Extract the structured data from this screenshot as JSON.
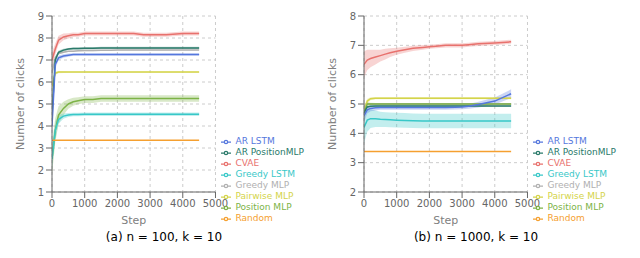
{
  "chart_data": [
    {
      "type": "line",
      "title": "(a) n = 100, k = 10",
      "x_label": "Step",
      "y_label": "Number of clicks",
      "x": [
        0,
        100,
        200,
        350,
        500,
        650,
        800,
        1000,
        1250,
        1500,
        1800,
        2000,
        2200,
        2500,
        2800,
        3000,
        3200,
        3500,
        4000,
        4500
      ],
      "xlim": [
        0,
        5000
      ],
      "ylim": [
        1,
        9
      ],
      "xticks": [
        0,
        1000,
        2000,
        3000,
        4000,
        5000
      ],
      "yticks": [
        1,
        2,
        3,
        4,
        5,
        6,
        7,
        8,
        9
      ],
      "grid": true,
      "legend": "lower right",
      "series": [
        {
          "name": "CVAE",
          "color": "#e8716d",
          "values": [
            7.0,
            7.5,
            7.9,
            8.05,
            8.1,
            8.15,
            8.15,
            8.2,
            8.2,
            8.2,
            8.2,
            8.2,
            8.2,
            8.2,
            8.15,
            8.15,
            8.15,
            8.15,
            8.2,
            8.2
          ],
          "std": [
            0.35,
            0.25,
            0.2,
            0.15,
            0.12,
            0.1,
            0.09,
            0.09,
            0.09,
            0.09,
            0.09,
            0.09,
            0.09,
            0.09,
            0.09,
            0.09,
            0.09,
            0.09,
            0.09,
            0.09
          ]
        },
        {
          "name": "Greedy MLP",
          "color": "#b0b0b0",
          "values": [
            6.4,
            7.1,
            7.3,
            7.35,
            7.4,
            7.4,
            7.42,
            7.43,
            7.43,
            7.44,
            7.44,
            7.45,
            7.45,
            7.45,
            7.45,
            7.45,
            7.45,
            7.45,
            7.45,
            7.45
          ],
          "std": [
            0.2,
            0.08,
            0.05,
            0.04,
            0.03,
            0.03,
            0.03,
            0.03,
            0.03,
            0.03,
            0.03,
            0.03,
            0.03,
            0.03,
            0.03,
            0.03,
            0.03,
            0.03,
            0.03,
            0.03
          ]
        },
        {
          "name": "Pairwise MLP",
          "color": "#d4d44a",
          "values": [
            5.8,
            6.4,
            6.45,
            6.45,
            6.45,
            6.45,
            6.45,
            6.45,
            6.45,
            6.45,
            6.45,
            6.45,
            6.45,
            6.45,
            6.45,
            6.45,
            6.45,
            6.45,
            6.45,
            6.45
          ],
          "std": [
            0.3,
            0.08,
            0.05,
            0.04,
            0.03,
            0.03,
            0.03,
            0.03,
            0.03,
            0.03,
            0.03,
            0.03,
            0.03,
            0.03,
            0.03,
            0.03,
            0.03,
            0.03,
            0.03,
            0.03
          ]
        },
        {
          "name": "Position MLP",
          "color": "#7db347",
          "values": [
            2.5,
            3.8,
            4.5,
            4.8,
            5.0,
            5.1,
            5.15,
            5.2,
            5.2,
            5.25,
            5.25,
            5.25,
            5.25,
            5.25,
            5.25,
            5.25,
            5.25,
            5.25,
            5.25,
            5.25
          ],
          "std": [
            0.7,
            0.55,
            0.4,
            0.3,
            0.22,
            0.18,
            0.16,
            0.15,
            0.15,
            0.15,
            0.15,
            0.15,
            0.15,
            0.15,
            0.15,
            0.15,
            0.15,
            0.15,
            0.15,
            0.15
          ]
        },
        {
          "name": "AR PositionMLP",
          "color": "#2a7a6a",
          "values": [
            4.5,
            7.0,
            7.35,
            7.45,
            7.5,
            7.52,
            7.52,
            7.53,
            7.53,
            7.55,
            7.55,
            7.55,
            7.55,
            7.55,
            7.55,
            7.55,
            7.55,
            7.55,
            7.55,
            7.55
          ],
          "std": [
            0.6,
            0.15,
            0.08,
            0.06,
            0.05,
            0.05,
            0.05,
            0.05,
            0.05,
            0.05,
            0.05,
            0.05,
            0.05,
            0.05,
            0.05,
            0.05,
            0.05,
            0.05,
            0.05,
            0.05
          ]
        },
        {
          "name": "Greedy LSTM",
          "color": "#38c8c8",
          "values": [
            2.5,
            3.8,
            4.3,
            4.45,
            4.5,
            4.52,
            4.52,
            4.53,
            4.53,
            4.53,
            4.53,
            4.53,
            4.53,
            4.53,
            4.53,
            4.53,
            4.53,
            4.53,
            4.53,
            4.53
          ],
          "std": [
            0.5,
            0.4,
            0.2,
            0.12,
            0.09,
            0.08,
            0.08,
            0.08,
            0.08,
            0.08,
            0.08,
            0.08,
            0.08,
            0.08,
            0.08,
            0.08,
            0.08,
            0.08,
            0.08,
            0.08
          ]
        },
        {
          "name": "AR LSTM",
          "color": "#5577dd",
          "values": [
            4.0,
            6.8,
            7.1,
            7.18,
            7.22,
            7.25,
            7.25,
            7.25,
            7.25,
            7.25,
            7.25,
            7.25,
            7.25,
            7.25,
            7.25,
            7.25,
            7.25,
            7.25,
            7.25,
            7.25
          ],
          "std": [
            0.55,
            0.2,
            0.1,
            0.08,
            0.07,
            0.06,
            0.06,
            0.06,
            0.06,
            0.06,
            0.06,
            0.06,
            0.06,
            0.06,
            0.06,
            0.06,
            0.06,
            0.06,
            0.06,
            0.06
          ]
        },
        {
          "name": "Random",
          "color": "#f5a030",
          "values": [
            3.35,
            3.35,
            3.35,
            3.35,
            3.35,
            3.35,
            3.35,
            3.35,
            3.35,
            3.35,
            3.35,
            3.35,
            3.35,
            3.35,
            3.35,
            3.35,
            3.35,
            3.35,
            3.35,
            3.35
          ],
          "std": [
            0.0,
            0.0,
            0.0,
            0.0,
            0.0,
            0.0,
            0.0,
            0.0,
            0.0,
            0.0,
            0.0,
            0.0,
            0.0,
            0.0,
            0.0,
            0.0,
            0.0,
            0.0,
            0.0,
            0.0
          ]
        }
      ]
    },
    {
      "type": "line",
      "title": "(b) n = 1000, k = 10",
      "x_label": "Step",
      "y_label": "Number of clicks",
      "x": [
        0,
        100,
        200,
        350,
        500,
        650,
        800,
        1000,
        1250,
        1500,
        1800,
        2000,
        2200,
        2500,
        2800,
        3000,
        3200,
        3500,
        4000,
        4500
      ],
      "xlim": [
        0,
        5000
      ],
      "ylim": [
        2,
        8
      ],
      "xticks": [
        0,
        1000,
        2000,
        3000,
        4000,
        5000
      ],
      "yticks": [
        2,
        3,
        4,
        5,
        6,
        7,
        8
      ],
      "grid": true,
      "legend": "lower right",
      "series": [
        {
          "name": "CVAE",
          "color": "#e8716d",
          "values": [
            6.35,
            6.5,
            6.55,
            6.6,
            6.65,
            6.7,
            6.75,
            6.8,
            6.85,
            6.9,
            6.93,
            6.95,
            6.97,
            7.0,
            7.0,
            7.0,
            7.02,
            7.05,
            7.08,
            7.12
          ],
          "std": [
            0.45,
            0.35,
            0.3,
            0.25,
            0.2,
            0.18,
            0.15,
            0.12,
            0.1,
            0.09,
            0.08,
            0.07,
            0.07,
            0.07,
            0.07,
            0.07,
            0.07,
            0.07,
            0.07,
            0.07
          ]
        },
        {
          "name": "Greedy MLP",
          "color": "#b0b0b0",
          "values": [
            4.9,
            5.0,
            5.0,
            5.0,
            5.0,
            5.0,
            5.0,
            5.0,
            5.0,
            5.0,
            5.0,
            5.0,
            5.0,
            5.0,
            5.0,
            5.0,
            5.0,
            5.0,
            5.0,
            5.0
          ],
          "std": [
            0.12,
            0.04,
            0.03,
            0.02,
            0.02,
            0.02,
            0.02,
            0.02,
            0.02,
            0.02,
            0.02,
            0.02,
            0.02,
            0.02,
            0.02,
            0.02,
            0.02,
            0.02,
            0.02,
            0.02
          ]
        },
        {
          "name": "Pairwise MLP",
          "color": "#d4d44a",
          "values": [
            4.7,
            5.1,
            5.18,
            5.2,
            5.2,
            5.2,
            5.2,
            5.2,
            5.2,
            5.2,
            5.2,
            5.2,
            5.2,
            5.2,
            5.2,
            5.2,
            5.2,
            5.2,
            5.2,
            5.2
          ],
          "std": [
            0.25,
            0.08,
            0.05,
            0.04,
            0.04,
            0.04,
            0.04,
            0.04,
            0.04,
            0.04,
            0.04,
            0.04,
            0.04,
            0.04,
            0.04,
            0.04,
            0.04,
            0.04,
            0.04,
            0.04
          ]
        },
        {
          "name": "Position MLP",
          "color": "#7db347",
          "values": [
            4.7,
            5.0,
            5.0,
            5.0,
            5.0,
            5.0,
            5.0,
            5.0,
            5.0,
            5.0,
            5.0,
            5.0,
            5.0,
            5.0,
            5.0,
            5.0,
            5.0,
            5.0,
            5.0,
            5.0
          ],
          "std": [
            0.25,
            0.06,
            0.04,
            0.03,
            0.03,
            0.03,
            0.03,
            0.03,
            0.03,
            0.03,
            0.03,
            0.03,
            0.03,
            0.03,
            0.03,
            0.03,
            0.03,
            0.03,
            0.03,
            0.03
          ]
        },
        {
          "name": "AR PositionMLP",
          "color": "#2a7a6a",
          "values": [
            4.7,
            4.9,
            4.92,
            4.93,
            4.93,
            4.93,
            4.93,
            4.93,
            4.93,
            4.93,
            4.93,
            4.93,
            4.93,
            4.93,
            4.93,
            4.93,
            4.93,
            4.93,
            4.93,
            4.93
          ],
          "std": [
            0.12,
            0.04,
            0.03,
            0.02,
            0.02,
            0.02,
            0.02,
            0.02,
            0.02,
            0.02,
            0.02,
            0.02,
            0.02,
            0.02,
            0.02,
            0.02,
            0.02,
            0.02,
            0.02,
            0.02
          ]
        },
        {
          "name": "Greedy LSTM",
          "color": "#38c8c8",
          "values": [
            4.2,
            4.45,
            4.5,
            4.5,
            4.48,
            4.47,
            4.46,
            4.45,
            4.44,
            4.43,
            4.42,
            4.42,
            4.42,
            4.42,
            4.42,
            4.42,
            4.42,
            4.42,
            4.42,
            4.42
          ],
          "std": [
            0.55,
            0.4,
            0.32,
            0.28,
            0.26,
            0.25,
            0.25,
            0.25,
            0.25,
            0.25,
            0.25,
            0.25,
            0.25,
            0.25,
            0.25,
            0.25,
            0.25,
            0.25,
            0.25,
            0.25
          ]
        },
        {
          "name": "AR LSTM",
          "color": "#5577dd",
          "values": [
            4.6,
            4.8,
            4.85,
            4.87,
            4.88,
            4.88,
            4.88,
            4.88,
            4.88,
            4.88,
            4.88,
            4.88,
            4.88,
            4.88,
            4.89,
            4.9,
            4.92,
            4.98,
            5.1,
            5.35
          ],
          "std": [
            0.22,
            0.12,
            0.1,
            0.09,
            0.08,
            0.08,
            0.08,
            0.08,
            0.08,
            0.08,
            0.08,
            0.08,
            0.08,
            0.08,
            0.08,
            0.08,
            0.08,
            0.1,
            0.12,
            0.15
          ]
        },
        {
          "name": "Random",
          "color": "#f5a030",
          "values": [
            3.38,
            3.38,
            3.38,
            3.38,
            3.38,
            3.38,
            3.38,
            3.38,
            3.38,
            3.38,
            3.38,
            3.38,
            3.38,
            3.38,
            3.38,
            3.38,
            3.38,
            3.38,
            3.38,
            3.38
          ],
          "std": [
            0.0,
            0.0,
            0.0,
            0.0,
            0.0,
            0.0,
            0.0,
            0.0,
            0.0,
            0.0,
            0.0,
            0.0,
            0.0,
            0.0,
            0.0,
            0.0,
            0.0,
            0.0,
            0.0,
            0.0
          ]
        }
      ]
    }
  ]
}
